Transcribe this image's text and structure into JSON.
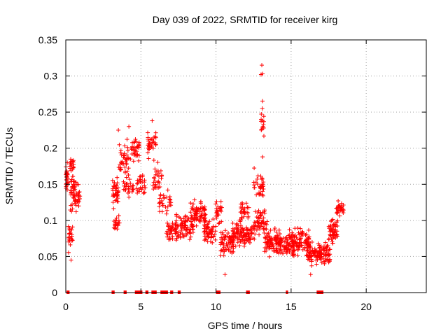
{
  "chart_data": {
    "type": "scatter",
    "title": "Day 039 of 2022, SRMTID for receiver kirg",
    "xlabel": "GPS time / hours",
    "ylabel": "SRMTID / TECUs",
    "xlim": [
      0,
      24
    ],
    "ylim": [
      0,
      0.35
    ],
    "xticks": [
      0,
      5,
      10,
      15,
      20
    ],
    "xtick_labels": [
      "0",
      "5",
      "10",
      "15",
      "20"
    ],
    "yticks": [
      0,
      0.05,
      0.1,
      0.15,
      0.2,
      0.25,
      0.3,
      0.35
    ],
    "ytick_labels": [
      "0",
      "0.05",
      "0.1",
      "0.15",
      "0.2",
      "0.25",
      "0.3",
      "0.35"
    ],
    "grid": true,
    "marker": "+",
    "color": "#ff0000",
    "series": [
      {
        "name": "SRMTID",
        "clusters": [
          {
            "x_range": [
              0.0,
              0.15
            ],
            "y_center": 0.155,
            "y_spread": 0.025,
            "count": 25
          },
          {
            "x_range": [
              0.15,
              0.45
            ],
            "y_center": 0.08,
            "y_spread": 0.035,
            "count": 25
          },
          {
            "x_range": [
              0.25,
              0.55
            ],
            "y_center": 0.175,
            "y_spread": 0.02,
            "count": 20
          },
          {
            "x_range": [
              0.3,
              0.95
            ],
            "y_center": 0.135,
            "y_spread": 0.03,
            "count": 60
          },
          {
            "x_range": [
              3.1,
              3.5
            ],
            "y_center": 0.14,
            "y_spread": 0.03,
            "count": 45
          },
          {
            "x_range": [
              3.2,
              3.6
            ],
            "y_center": 0.095,
            "y_spread": 0.02,
            "count": 20
          },
          {
            "x_range": [
              3.5,
              4.2
            ],
            "y_center": 0.185,
            "y_spread": 0.03,
            "count": 40
          },
          {
            "x_range": [
              3.8,
              4.5
            ],
            "y_center": 0.145,
            "y_spread": 0.025,
            "count": 30
          },
          {
            "x_range": [
              4.3,
              4.9
            ],
            "y_center": 0.195,
            "y_spread": 0.025,
            "count": 35
          },
          {
            "x_range": [
              4.7,
              5.3
            ],
            "y_center": 0.15,
            "y_spread": 0.025,
            "count": 30
          },
          {
            "x_range": [
              5.4,
              6.0
            ],
            "y_center": 0.205,
            "y_spread": 0.025,
            "count": 35
          },
          {
            "x_range": [
              5.8,
              6.4
            ],
            "y_center": 0.155,
            "y_spread": 0.03,
            "count": 30
          },
          {
            "x_range": [
              6.2,
              7.0
            ],
            "y_center": 0.125,
            "y_spread": 0.02,
            "count": 30
          },
          {
            "x_range": [
              6.7,
              7.5
            ],
            "y_center": 0.085,
            "y_spread": 0.02,
            "count": 40
          },
          {
            "x_range": [
              7.3,
              8.5
            ],
            "y_center": 0.09,
            "y_spread": 0.025,
            "count": 80
          },
          {
            "x_range": [
              8.3,
              9.3
            ],
            "y_center": 0.11,
            "y_spread": 0.025,
            "count": 80
          },
          {
            "x_range": [
              9.2,
              10.0
            ],
            "y_center": 0.085,
            "y_spread": 0.025,
            "count": 55
          },
          {
            "x_range": [
              9.9,
              10.4
            ],
            "y_center": 0.11,
            "y_spread": 0.02,
            "count": 25
          },
          {
            "x_range": [
              10.3,
              11.2
            ],
            "y_center": 0.07,
            "y_spread": 0.025,
            "count": 70
          },
          {
            "x_range": [
              11.0,
              12.0
            ],
            "y_center": 0.08,
            "y_spread": 0.025,
            "count": 70
          },
          {
            "x_range": [
              11.6,
              12.2
            ],
            "y_center": 0.11,
            "y_spread": 0.02,
            "count": 30
          },
          {
            "x_range": [
              12.0,
              12.6
            ],
            "y_center": 0.085,
            "y_spread": 0.02,
            "count": 40
          },
          {
            "x_range": [
              12.5,
              13.2
            ],
            "y_center": 0.15,
            "y_spread": 0.025,
            "count": 35
          },
          {
            "x_range": [
              12.6,
              13.4
            ],
            "y_center": 0.1,
            "y_spread": 0.025,
            "count": 50
          },
          {
            "x_range": [
              13.0,
              13.2
            ],
            "y_center": 0.24,
            "y_spread": 0.06,
            "count": 14
          },
          {
            "x_range": [
              13.2,
              14.2
            ],
            "y_center": 0.07,
            "y_spread": 0.025,
            "count": 80
          },
          {
            "x_range": [
              14.0,
              15.2
            ],
            "y_center": 0.065,
            "y_spread": 0.025,
            "count": 90
          },
          {
            "x_range": [
              15.0,
              16.2
            ],
            "y_center": 0.07,
            "y_spread": 0.025,
            "count": 90
          },
          {
            "x_range": [
              16.0,
              16.9
            ],
            "y_center": 0.055,
            "y_spread": 0.02,
            "count": 70
          },
          {
            "x_range": [
              16.9,
              17.6
            ],
            "y_center": 0.055,
            "y_spread": 0.02,
            "count": 60
          },
          {
            "x_range": [
              17.5,
              18.1
            ],
            "y_center": 0.085,
            "y_spread": 0.025,
            "count": 55
          },
          {
            "x_range": [
              18.0,
              18.5
            ],
            "y_center": 0.115,
            "y_spread": 0.015,
            "count": 30
          }
        ],
        "outliers": [
          {
            "x": 13.05,
            "y": 0.315
          },
          {
            "x": 13.1,
            "y": 0.303
          },
          {
            "x": 13.0,
            "y": 0.302
          },
          {
            "x": 13.08,
            "y": 0.255
          },
          {
            "x": 4.2,
            "y": 0.23
          },
          {
            "x": 5.75,
            "y": 0.238
          },
          {
            "x": 3.5,
            "y": 0.225
          },
          {
            "x": 0.1,
            "y": 0.18
          },
          {
            "x": 13.1,
            "y": 0.188
          },
          {
            "x": 0.35,
            "y": 0.045
          },
          {
            "x": 16.3,
            "y": 0.025
          },
          {
            "x": 10.6,
            "y": 0.025
          }
        ]
      }
    ],
    "zero_segments": [
      [
        0.05,
        0.25
      ],
      [
        3.05,
        3.25
      ],
      [
        3.85,
        4.05
      ],
      [
        4.6,
        5.1
      ],
      [
        5.3,
        5.5
      ],
      [
        5.7,
        6.05
      ],
      [
        6.3,
        6.8
      ],
      [
        6.95,
        7.15
      ],
      [
        7.45,
        7.65
      ],
      [
        10.0,
        10.3
      ],
      [
        12.0,
        12.25
      ],
      [
        14.65,
        14.8
      ],
      [
        16.7,
        17.15
      ]
    ]
  }
}
